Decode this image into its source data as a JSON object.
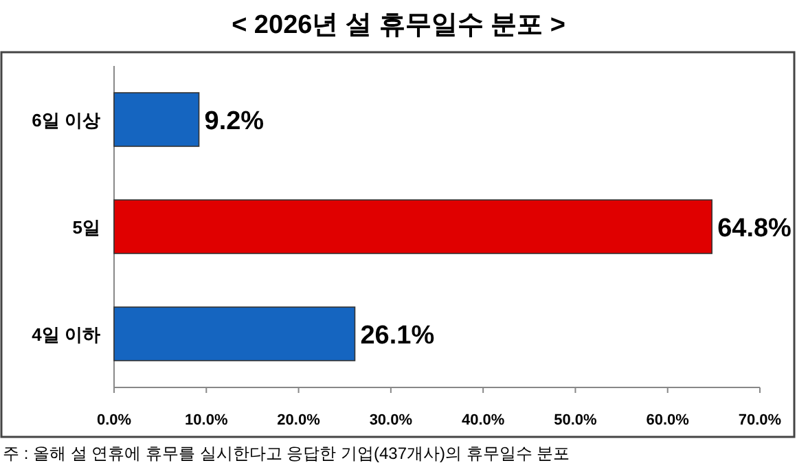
{
  "chart_data": {
    "type": "bar",
    "orientation": "horizontal",
    "title": "< 2026년 설 휴무일수 분포 >",
    "categories": [
      "6일 이상",
      "5일",
      "4일 이하"
    ],
    "values": [
      9.2,
      64.8,
      26.1
    ],
    "colors": [
      "#1565c0",
      "#e00000",
      "#1565c0"
    ],
    "value_labels": [
      "9.2%",
      "64.8%",
      "26.1%"
    ],
    "xlim": [
      0,
      70
    ],
    "xticks": [
      {
        "value": 0,
        "label": "0.0%"
      },
      {
        "value": 10,
        "label": "10.0%"
      },
      {
        "value": 20,
        "label": "20.0%"
      },
      {
        "value": 30,
        "label": "30.0%"
      },
      {
        "value": 40,
        "label": "40.0%"
      },
      {
        "value": 50,
        "label": "50.0%"
      },
      {
        "value": 60,
        "label": "60.0%"
      },
      {
        "value": 70,
        "label": "70.0%"
      }
    ],
    "annotations": [
      "주 : 올해 설 연휴에 휴무를 실시한다고 응답한 기업(437개사)의 휴무일수 분포"
    ]
  }
}
